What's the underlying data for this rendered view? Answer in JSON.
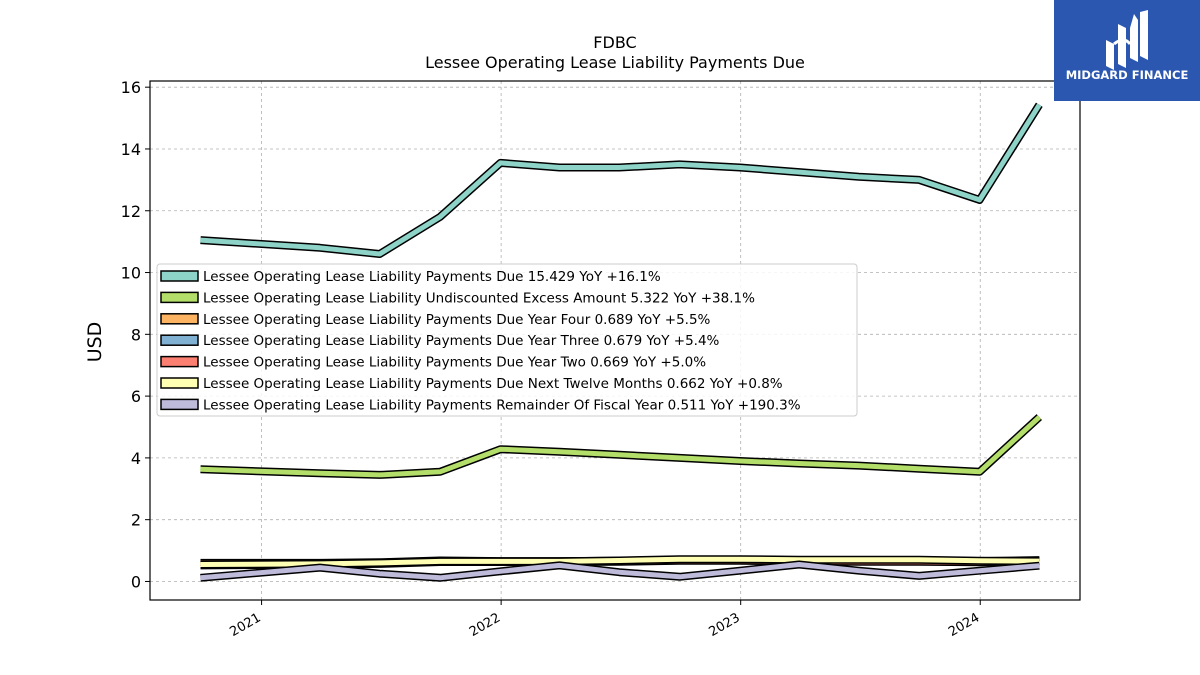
{
  "chart_data": {
    "type": "line",
    "title": "FDBC",
    "subtitle": "Lessee Operating Lease Liability Payments Due",
    "ylabel": "USD",
    "xlabel": "",
    "ylim": [
      -0.6,
      16.2
    ],
    "xlim": [
      "2020-07-15",
      "2024-06-01"
    ],
    "yticks": [
      0,
      2,
      4,
      6,
      8,
      10,
      12,
      14,
      16
    ],
    "xticks": [
      {
        "date": "2021-01-01",
        "label": "2021"
      },
      {
        "date": "2022-01-01",
        "label": "2022"
      },
      {
        "date": "2023-01-01",
        "label": "2023"
      },
      {
        "date": "2024-01-01",
        "label": "2024"
      }
    ],
    "grid": true,
    "legend_position": "center-left",
    "x": [
      "2020-09-30",
      "2021-03-31",
      "2021-06-30",
      "2021-09-30",
      "2021-12-31",
      "2022-03-31",
      "2022-06-30",
      "2022-09-30",
      "2022-12-31",
      "2023-03-31",
      "2023-06-30",
      "2023-09-30",
      "2023-12-31",
      "2024-03-31"
    ],
    "series": [
      {
        "name": "Lessee Operating Lease Liability Payments Due",
        "legend_label": "Lessee Operating Lease Liability Payments Due  15.429 YoY +16.1%",
        "color": "#8dd3c7",
        "values": [
          11.05,
          10.8,
          10.6,
          11.8,
          13.55,
          13.4,
          13.4,
          13.5,
          13.4,
          13.25,
          13.1,
          13.0,
          12.35,
          15.43
        ]
      },
      {
        "name": "Lessee Operating Lease Liability Undiscounted Excess Amount",
        "legend_label": "Lessee Operating Lease Liability Undiscounted Excess Amount  5.322 YoY +38.1%",
        "color": "#b3de69",
        "values": [
          3.63,
          3.5,
          3.45,
          3.55,
          4.28,
          4.2,
          4.1,
          4.0,
          3.9,
          3.82,
          3.75,
          3.65,
          3.55,
          5.32
        ]
      },
      {
        "name": "Lessee Operating Lease Liability Payments Due Year Four",
        "legend_label": "Lessee Operating Lease Liability Payments Due Year Four  0.689 YoY +5.5%",
        "color": "#fdb462",
        "values": [
          0.6,
          0.6,
          0.62,
          0.68,
          0.66,
          0.66,
          0.67,
          0.7,
          0.7,
          0.68,
          0.67,
          0.68,
          0.66,
          0.69
        ]
      },
      {
        "name": "Lessee Operating Lease Liability Payments Due Year Three",
        "legend_label": "Lessee Operating Lease Liability Payments Due Year Three  0.679 YoY +5.4%",
        "color": "#80b1d3",
        "values": [
          0.55,
          0.58,
          0.6,
          0.66,
          0.65,
          0.65,
          0.66,
          0.69,
          0.69,
          0.67,
          0.66,
          0.66,
          0.64,
          0.68
        ]
      },
      {
        "name": "Lessee Operating Lease Liability Payments Due Year Two",
        "legend_label": "Lessee Operating Lease Liability Payments Due Year Two  0.669 YoY +5.0%",
        "color": "#fb8072",
        "values": [
          0.52,
          0.55,
          0.57,
          0.63,
          0.63,
          0.63,
          0.64,
          0.67,
          0.67,
          0.65,
          0.64,
          0.64,
          0.62,
          0.67
        ]
      },
      {
        "name": "Lessee Operating Lease Liability Payments Due Next Twelve Months",
        "legend_label": "Lessee Operating Lease Liability Payments Due Next Twelve Months  0.662 YoY +0.8%",
        "color": "#ffffb3",
        "values": [
          0.55,
          0.57,
          0.6,
          0.65,
          0.65,
          0.65,
          0.68,
          0.72,
          0.72,
          0.7,
          0.7,
          0.7,
          0.67,
          0.66
        ]
      },
      {
        "name": "Lessee Operating Lease Liability Payments Remainder Of Fiscal Year",
        "legend_label": "Lessee Operating Lease Liability Payments Remainder Of Fiscal Year  0.511 YoY +190.3%",
        "color": "#bebada",
        "values": [
          0.12,
          0.45,
          0.25,
          0.12,
          0.33,
          0.52,
          0.3,
          0.15,
          0.35,
          0.55,
          0.35,
          0.18,
          0.35,
          0.51
        ]
      }
    ]
  },
  "logo": {
    "name": "MIDGARD FINANCE",
    "bg_color": "#2b57b0"
  }
}
